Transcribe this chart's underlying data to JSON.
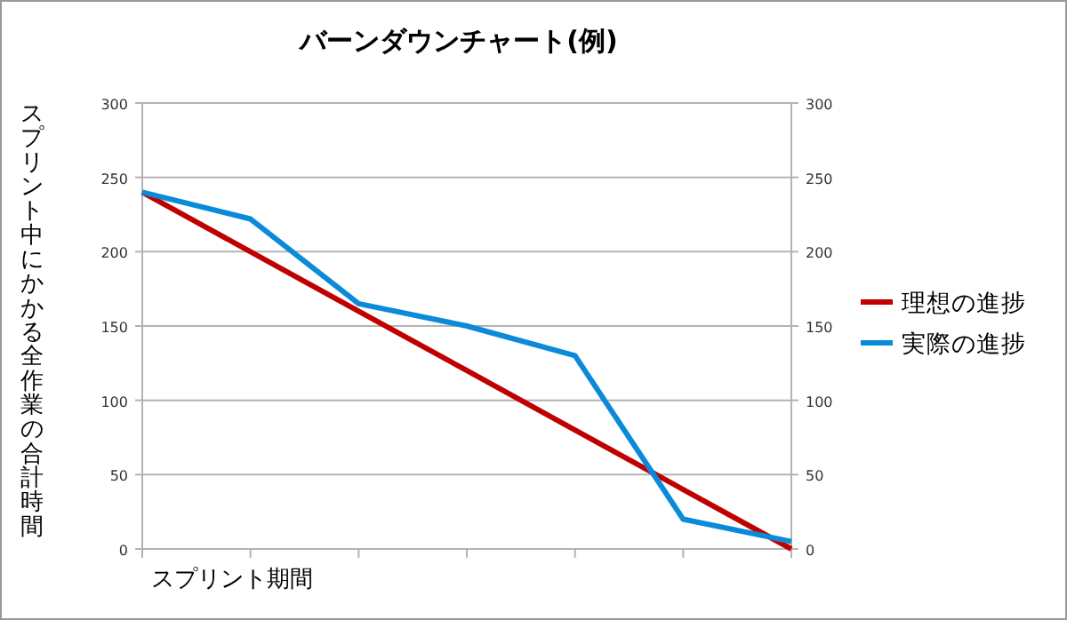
{
  "chart_data": {
    "type": "line",
    "title": "バーンダウンチャート(例)",
    "xlabel": "スプリント期間",
    "ylabel": "スプリント中にかかる全作業の合計時間",
    "categories": [
      null,
      null,
      null,
      null,
      null,
      null,
      null
    ],
    "series": [
      {
        "name": "理想の進捗",
        "color": "#c00000",
        "values": [
          240,
          200,
          160,
          120,
          80,
          40,
          0
        ]
      },
      {
        "name": "実際の進捗",
        "color": "#0a8ad8",
        "values": [
          240,
          222,
          165,
          150,
          130,
          20,
          5
        ]
      }
    ],
    "ylim": [
      0,
      300
    ],
    "yticks": [
      0,
      50,
      100,
      150,
      200,
      250,
      300
    ],
    "y2lim": [
      0,
      300
    ],
    "y2ticks": [
      0,
      50,
      100,
      150,
      200,
      250,
      300
    ],
    "grid": "y",
    "legend": "right",
    "marker": "none"
  }
}
